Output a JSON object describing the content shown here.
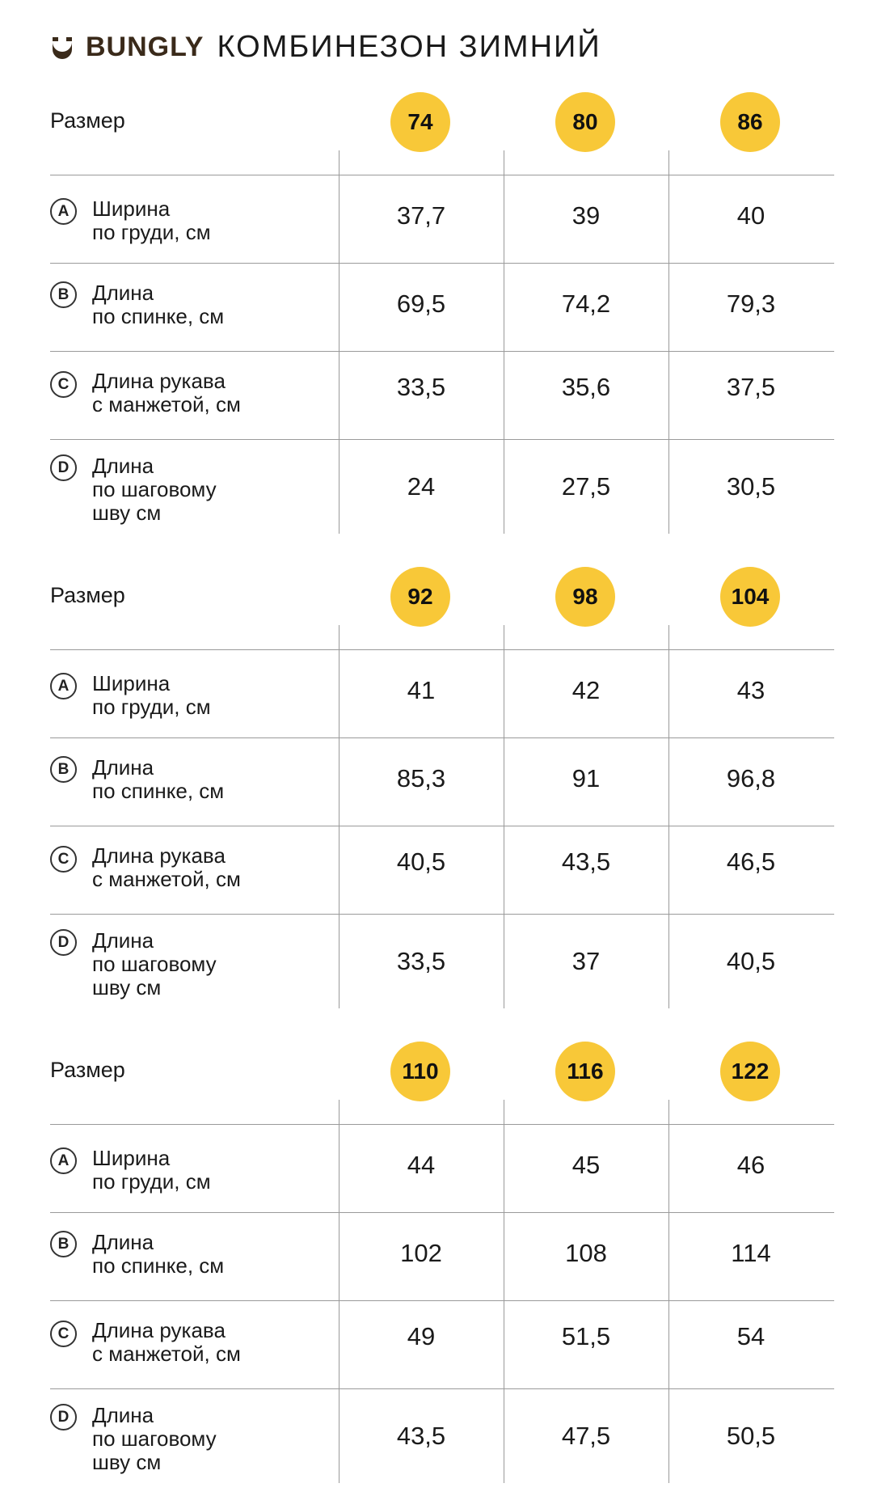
{
  "brand": "BUNGLY",
  "title": "КОМБИНЕЗОН ЗИМНИЙ",
  "accent_color": "#f8c838",
  "size_label": "Размер",
  "measurements": [
    {
      "letter": "A",
      "lines": [
        "Ширина",
        "по груди, см"
      ]
    },
    {
      "letter": "B",
      "lines": [
        "Длина",
        "по спинке, см"
      ]
    },
    {
      "letter": "C",
      "lines": [
        "Длина рукава",
        "с манжетой, см"
      ]
    },
    {
      "letter": "D",
      "lines": [
        "Длина",
        "по шаговому",
        "шву см"
      ]
    }
  ],
  "blocks": [
    {
      "sizes": [
        "74",
        "80",
        "86"
      ],
      "rows": [
        [
          "37,7",
          "39",
          "40"
        ],
        [
          "69,5",
          "74,2",
          "79,3"
        ],
        [
          "33,5",
          "35,6",
          "37,5"
        ],
        [
          "24",
          "27,5",
          "30,5"
        ]
      ]
    },
    {
      "sizes": [
        "92",
        "98",
        "104"
      ],
      "rows": [
        [
          "41",
          "42",
          "43"
        ],
        [
          "85,3",
          "91",
          "96,8"
        ],
        [
          "40,5",
          "43,5",
          "46,5"
        ],
        [
          "33,5",
          "37",
          "40,5"
        ]
      ]
    },
    {
      "sizes": [
        "110",
        "116",
        "122"
      ],
      "rows": [
        [
          "44",
          "45",
          "46"
        ],
        [
          "102",
          "108",
          "114"
        ],
        [
          "49",
          "51,5",
          "54"
        ],
        [
          "43,5",
          "47,5",
          "50,5"
        ]
      ]
    }
  ]
}
